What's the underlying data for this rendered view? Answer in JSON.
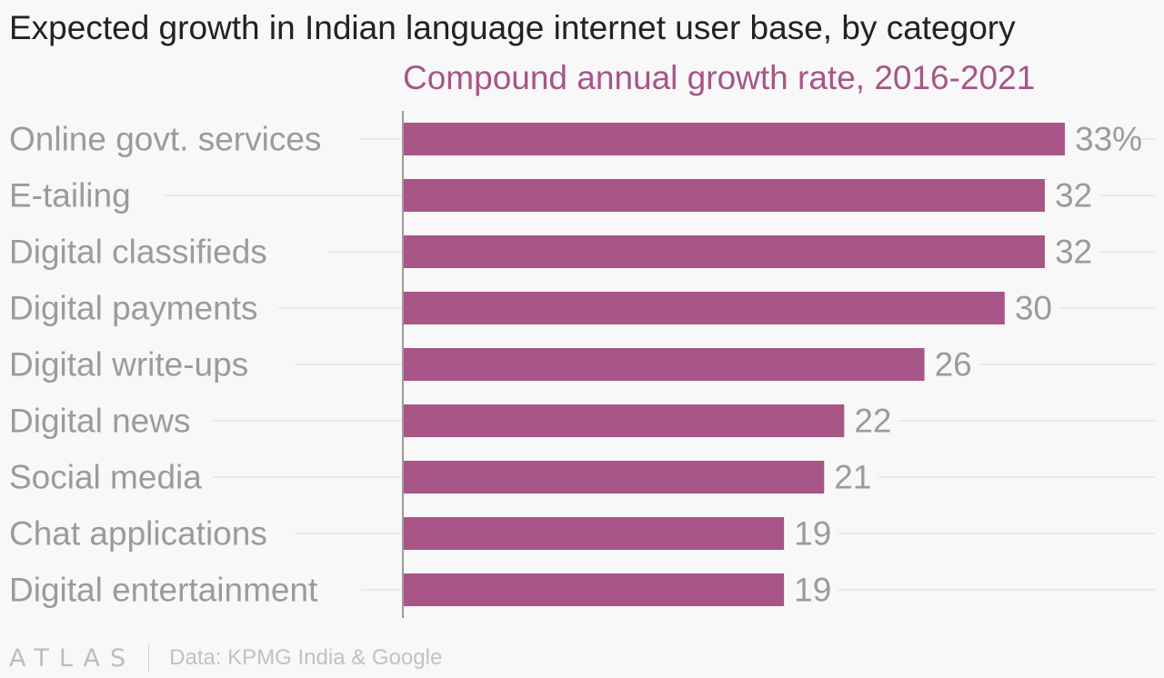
{
  "title": "Expected growth in Indian language internet user base, by category",
  "subtitle": "Compound annual growth rate, 2016-2021",
  "colors": {
    "bar": "#a85587",
    "subtitle": "#a85587",
    "label": "#9b9b9b",
    "grid": "#e6e6e6",
    "axis": "#9b9b9b"
  },
  "chart_data": {
    "type": "bar",
    "orientation": "horizontal",
    "categories": [
      "Online govt. services",
      "E-tailing",
      "Digital classifieds",
      "Digital payments",
      "Digital write-ups",
      "Digital news",
      "Social media",
      "Chat applications",
      "Digital entertainment"
    ],
    "values": [
      33,
      32,
      32,
      30,
      26,
      22,
      21,
      19,
      19
    ],
    "value_labels": [
      "33%",
      "32",
      "32",
      "30",
      "26",
      "22",
      "21",
      "19",
      "19"
    ],
    "xlim": [
      0,
      33
    ],
    "grid": true
  },
  "footer": {
    "logo": "ATLAS",
    "source": "Data: KPMG India & Google"
  }
}
